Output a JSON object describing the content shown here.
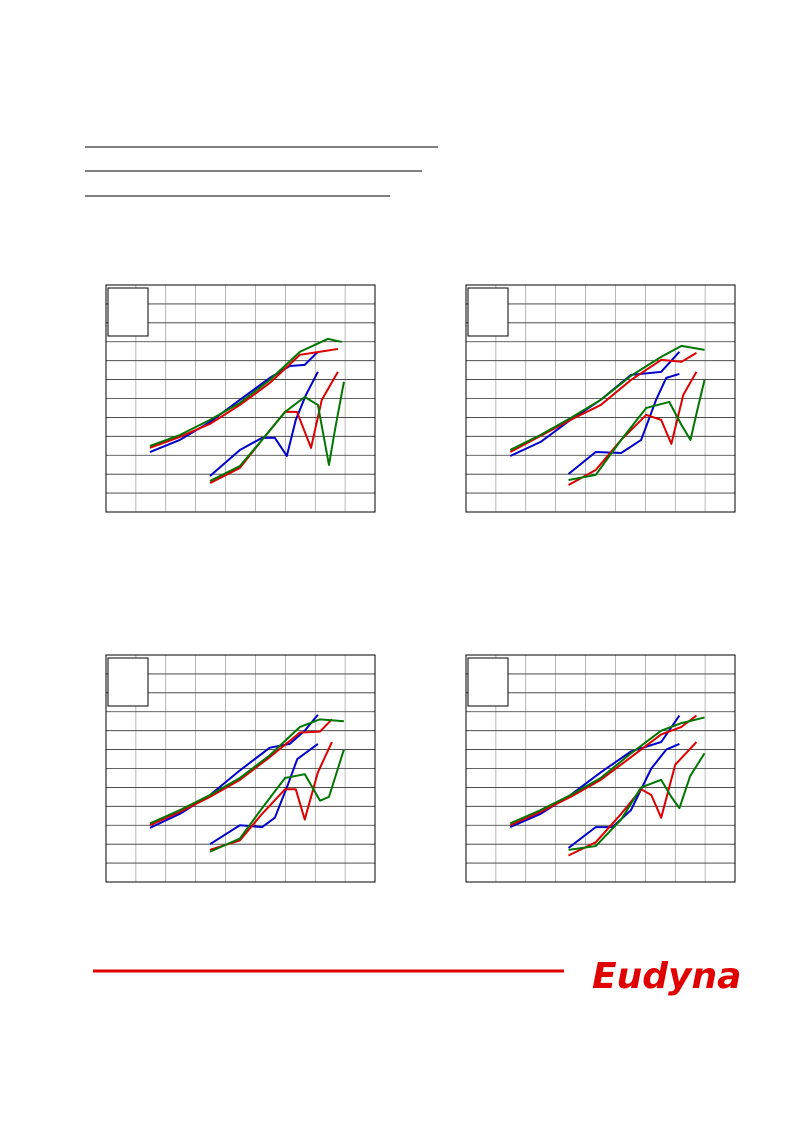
{
  "chart_data": [
    {
      "type": "line",
      "xlim": [
        0,
        9
      ],
      "ylim": [
        0,
        12
      ],
      "xticks": [
        0,
        1,
        2,
        3,
        4,
        5,
        6,
        7,
        8,
        9
      ],
      "yticks": [
        0,
        1,
        2,
        3,
        4,
        5,
        6,
        7,
        8,
        9,
        10,
        11,
        12
      ],
      "grid": true,
      "series": [
        {
          "color": "#0000cc",
          "x": [
            1.47,
            2.47,
            3.48,
            4.48,
            5.48,
            6.15,
            6.65,
            7.09
          ],
          "values": [
            3.17,
            3.81,
            4.76,
            5.93,
            7.09,
            7.72,
            7.78,
            8.47
          ]
        },
        {
          "color": "#dd0000",
          "x": [
            1.47,
            2.47,
            3.48,
            4.48,
            5.48,
            6.49,
            7.16,
            7.76
          ],
          "values": [
            3.39,
            3.97,
            4.66,
            5.66,
            6.82,
            8.31,
            8.47,
            8.62
          ]
        },
        {
          "color": "#007700",
          "x": [
            1.47,
            2.47,
            3.48,
            4.48,
            5.48,
            6.49,
            7.42,
            7.89
          ],
          "values": [
            3.49,
            4.07,
            4.87,
            5.77,
            6.98,
            8.47,
            9.15,
            8.99
          ]
        },
        {
          "color": "#0000cc",
          "x": [
            3.48,
            4.48,
            5.22,
            5.65,
            6.05,
            6.35,
            6.69,
            7.09
          ],
          "values": [
            1.9,
            3.28,
            3.92,
            3.92,
            2.96,
            4.87,
            6.19,
            7.41
          ]
        },
        {
          "color": "#dd0000",
          "x": [
            3.48,
            4.48,
            5.22,
            5.99,
            6.39,
            6.86,
            7.22,
            7.76
          ],
          "values": [
            1.53,
            2.33,
            3.81,
            5.29,
            5.29,
            3.39,
            5.93,
            7.41
          ]
        },
        {
          "color": "#007700",
          "x": [
            3.48,
            4.48,
            5.22,
            5.99,
            6.65,
            7.09,
            7.46,
            7.66,
            7.96
          ],
          "values": [
            1.64,
            2.43,
            3.81,
            5.29,
            6.08,
            5.66,
            2.49,
            4.34,
            6.88
          ]
        }
      ]
    },
    {
      "type": "line",
      "xlim": [
        0,
        9
      ],
      "ylim": [
        0,
        12
      ],
      "xticks": [
        0,
        1,
        2,
        3,
        4,
        5,
        6,
        7,
        8,
        9
      ],
      "yticks": [
        0,
        1,
        2,
        3,
        4,
        5,
        6,
        7,
        8,
        9,
        10,
        11,
        12
      ],
      "grid": true,
      "series": [
        {
          "color": "#0000cc",
          "x": [
            1.48,
            2.49,
            3.5,
            4.51,
            5.52,
            6.53,
            7.14
          ],
          "values": [
            2.96,
            3.7,
            4.87,
            5.93,
            7.25,
            7.41,
            8.47
          ]
        },
        {
          "color": "#dd0000",
          "x": [
            1.48,
            2.49,
            3.5,
            4.51,
            5.52,
            6.53,
            7.21,
            7.71
          ],
          "values": [
            3.17,
            4.02,
            4.87,
            5.66,
            6.98,
            8.04,
            7.94,
            8.41
          ]
        },
        {
          "color": "#007700",
          "x": [
            1.48,
            2.49,
            3.5,
            4.51,
            5.52,
            6.53,
            7.21,
            7.98
          ],
          "values": [
            3.28,
            4.07,
            4.97,
            5.93,
            7.2,
            8.2,
            8.78,
            8.57
          ]
        },
        {
          "color": "#0000cc",
          "x": [
            3.43,
            4.34,
            5.19,
            5.86,
            6.36,
            6.7,
            7.14
          ],
          "values": [
            2.01,
            3.17,
            3.12,
            3.81,
            5.93,
            7.09,
            7.3
          ]
        },
        {
          "color": "#dd0000",
          "x": [
            3.43,
            4.34,
            5.19,
            6.03,
            6.53,
            6.87,
            7.27,
            7.71
          ],
          "values": [
            1.43,
            2.22,
            3.81,
            5.13,
            4.87,
            3.6,
            6.19,
            7.41
          ]
        },
        {
          "color": "#007700",
          "x": [
            3.43,
            4.34,
            5.19,
            6.03,
            6.8,
            7.21,
            7.51,
            7.74,
            7.98
          ],
          "values": [
            1.69,
            1.96,
            3.81,
            5.5,
            5.82,
            4.6,
            3.81,
            5.4,
            6.98
          ]
        }
      ]
    },
    {
      "type": "line",
      "xlim": [
        0,
        9
      ],
      "ylim": [
        0,
        12
      ],
      "xticks": [
        0,
        1,
        2,
        3,
        4,
        5,
        6,
        7,
        8,
        9
      ],
      "yticks": [
        0,
        1,
        2,
        3,
        4,
        5,
        6,
        7,
        8,
        9,
        10,
        11,
        12
      ],
      "grid": true,
      "series": [
        {
          "color": "#0000cc",
          "x": [
            1.47,
            2.47,
            3.48,
            4.48,
            5.48,
            6.15,
            6.65,
            7.09
          ],
          "values": [
            2.86,
            3.6,
            4.6,
            5.9,
            7.1,
            7.3,
            8.0,
            8.84
          ]
        },
        {
          "color": "#dd0000",
          "x": [
            1.47,
            2.47,
            3.48,
            4.48,
            5.48,
            6.49,
            7.16,
            7.56
          ],
          "values": [
            3.0,
            3.7,
            4.5,
            5.4,
            6.6,
            7.9,
            7.95,
            8.6
          ]
        },
        {
          "color": "#007700",
          "x": [
            1.47,
            2.47,
            3.48,
            4.48,
            5.48,
            6.49,
            7.16,
            7.96
          ],
          "values": [
            3.1,
            3.8,
            4.6,
            5.5,
            6.7,
            8.2,
            8.6,
            8.5
          ]
        },
        {
          "color": "#0000cc",
          "x": [
            3.48,
            4.48,
            5.22,
            5.65,
            6.05,
            6.4,
            7.09
          ],
          "values": [
            2.0,
            3.0,
            2.9,
            3.4,
            5.0,
            6.5,
            7.3
          ]
        },
        {
          "color": "#dd0000",
          "x": [
            3.48,
            4.48,
            5.22,
            5.99,
            6.35,
            6.65,
            7.09,
            7.56
          ],
          "values": [
            1.7,
            2.2,
            3.6,
            4.9,
            4.9,
            3.3,
            5.8,
            7.4
          ]
        },
        {
          "color": "#007700",
          "x": [
            3.48,
            4.48,
            5.22,
            5.99,
            6.65,
            7.16,
            7.46,
            7.96
          ],
          "values": [
            1.6,
            2.3,
            3.9,
            5.5,
            5.7,
            4.3,
            4.5,
            7.0
          ]
        }
      ]
    },
    {
      "type": "line",
      "xlim": [
        0,
        9
      ],
      "ylim": [
        0,
        12
      ],
      "xticks": [
        0,
        1,
        2,
        3,
        4,
        5,
        6,
        7,
        8,
        9
      ],
      "yticks": [
        0,
        1,
        2,
        3,
        4,
        5,
        6,
        7,
        8,
        9,
        10,
        11,
        12
      ],
      "grid": true,
      "series": [
        {
          "color": "#0000cc",
          "x": [
            1.48,
            2.49,
            3.5,
            4.51,
            5.52,
            6.53,
            7.14
          ],
          "values": [
            2.9,
            3.6,
            4.6,
            5.8,
            6.9,
            7.4,
            8.8
          ]
        },
        {
          "color": "#dd0000",
          "x": [
            1.48,
            2.49,
            3.5,
            4.51,
            5.52,
            6.53,
            7.21,
            7.71
          ],
          "values": [
            3.0,
            3.7,
            4.5,
            5.4,
            6.6,
            7.8,
            8.2,
            8.8
          ]
        },
        {
          "color": "#007700",
          "x": [
            1.48,
            2.49,
            3.5,
            4.51,
            5.52,
            6.53,
            7.21,
            7.98
          ],
          "values": [
            3.1,
            3.8,
            4.6,
            5.5,
            6.8,
            8.0,
            8.4,
            8.7
          ]
        },
        {
          "color": "#0000cc",
          "x": [
            3.43,
            4.34,
            4.9,
            5.52,
            6.2,
            6.7,
            7.14
          ],
          "values": [
            1.8,
            2.9,
            2.9,
            3.8,
            6.0,
            7.0,
            7.3
          ]
        },
        {
          "color": "#dd0000",
          "x": [
            3.43,
            4.34,
            5.19,
            5.86,
            6.2,
            6.53,
            7.0,
            7.71
          ],
          "values": [
            1.4,
            2.1,
            3.6,
            4.9,
            4.6,
            3.4,
            6.2,
            7.4
          ]
        },
        {
          "color": "#007700",
          "x": [
            3.43,
            4.34,
            5.19,
            5.86,
            6.53,
            6.87,
            7.14,
            7.5,
            7.98
          ],
          "values": [
            1.7,
            1.9,
            3.3,
            5.0,
            5.4,
            4.5,
            3.9,
            5.6,
            6.8
          ]
        }
      ]
    }
  ],
  "footer": {
    "logo": "Eudyna"
  }
}
